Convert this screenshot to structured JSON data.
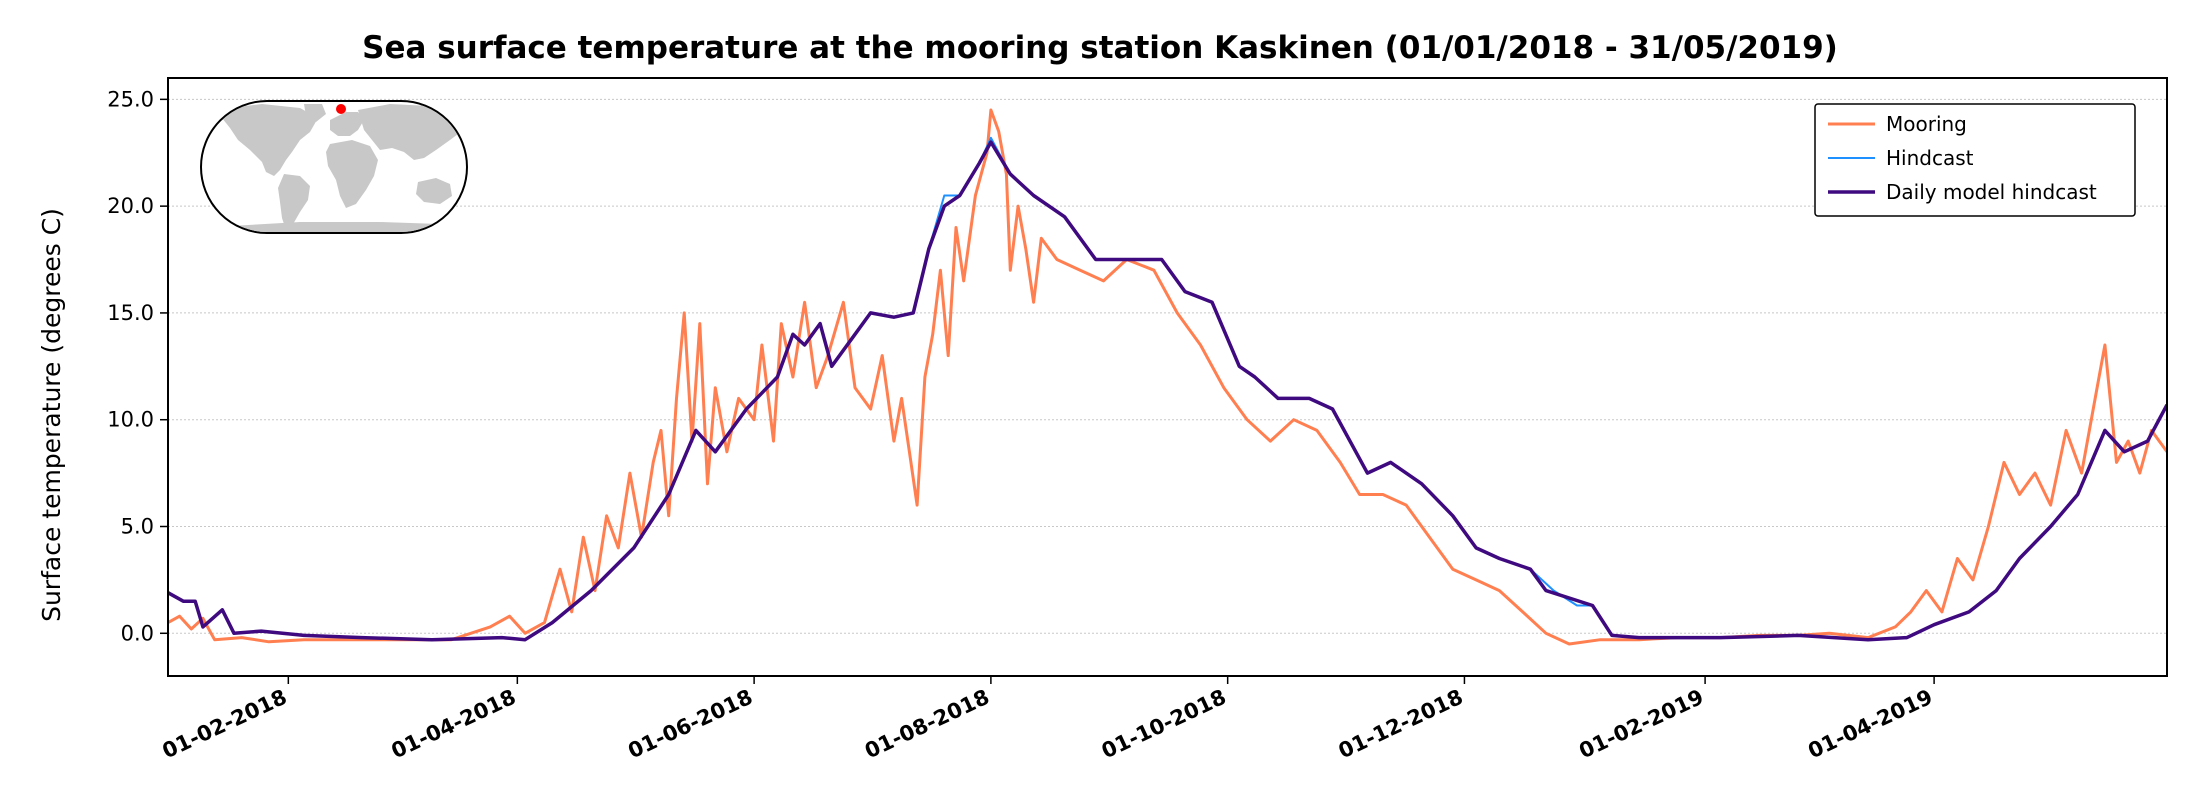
{
  "chart_data": {
    "type": "line",
    "title": "Sea surface temperature at the mooring station Kaskinen (01/01/2018 - 31/05/2019)",
    "xlabel": "",
    "ylabel": "Surface temperature (degrees C)",
    "xlim": [
      "2018-01-01",
      "2019-05-31"
    ],
    "ylim": [
      -2,
      26
    ],
    "yticks": [
      0,
      5,
      10,
      15,
      20,
      25
    ],
    "ytick_labels": [
      "0.0",
      "5.0",
      "10.0",
      "15.0",
      "20.0",
      "25.0"
    ],
    "xticks": [
      "2018-02-01",
      "2018-04-01",
      "2018-06-01",
      "2018-08-01",
      "2018-10-01",
      "2018-12-01",
      "2019-02-01",
      "2019-04-01"
    ],
    "xtick_labels": [
      "01-02-2018",
      "01-04-2018",
      "01-06-2018",
      "01-08-2018",
      "01-10-2018",
      "01-12-2018",
      "01-02-2019",
      "01-04-2019"
    ],
    "grid": "horizontal dotted",
    "legend_position": "top-right",
    "inset": "world map with station marker",
    "series": [
      {
        "name": "Mooring",
        "color": "#FF7F50",
        "points": [
          [
            "2018-01-01",
            0.5
          ],
          [
            "2018-01-04",
            0.8
          ],
          [
            "2018-01-07",
            0.2
          ],
          [
            "2018-01-10",
            0.7
          ],
          [
            "2018-01-13",
            -0.3
          ],
          [
            "2018-01-20",
            -0.2
          ],
          [
            "2018-01-27",
            -0.4
          ],
          [
            "2018-02-05",
            -0.3
          ],
          [
            "2018-02-15",
            -0.3
          ],
          [
            "2018-03-01",
            -0.3
          ],
          [
            "2018-03-15",
            -0.3
          ],
          [
            "2018-03-25",
            0.3
          ],
          [
            "2018-03-30",
            0.8
          ],
          [
            "2018-04-03",
            0.0
          ],
          [
            "2018-04-08",
            0.5
          ],
          [
            "2018-04-12",
            3.0
          ],
          [
            "2018-04-15",
            1.0
          ],
          [
            "2018-04-18",
            4.5
          ],
          [
            "2018-04-21",
            2.0
          ],
          [
            "2018-04-24",
            5.5
          ],
          [
            "2018-04-27",
            4.0
          ],
          [
            "2018-04-30",
            7.5
          ],
          [
            "2018-05-03",
            4.5
          ],
          [
            "2018-05-06",
            8.0
          ],
          [
            "2018-05-08",
            9.5
          ],
          [
            "2018-05-10",
            5.5
          ],
          [
            "2018-05-12",
            11.0
          ],
          [
            "2018-05-14",
            15.0
          ],
          [
            "2018-05-16",
            9.0
          ],
          [
            "2018-05-18",
            14.5
          ],
          [
            "2018-05-20",
            7.0
          ],
          [
            "2018-05-22",
            11.5
          ],
          [
            "2018-05-25",
            8.5
          ],
          [
            "2018-05-28",
            11.0
          ],
          [
            "2018-06-01",
            10.0
          ],
          [
            "2018-06-03",
            13.5
          ],
          [
            "2018-06-06",
            9.0
          ],
          [
            "2018-06-08",
            14.5
          ],
          [
            "2018-06-11",
            12.0
          ],
          [
            "2018-06-14",
            15.5
          ],
          [
            "2018-06-17",
            11.5
          ],
          [
            "2018-06-20",
            13.0
          ],
          [
            "2018-06-24",
            15.5
          ],
          [
            "2018-06-27",
            11.5
          ],
          [
            "2018-07-01",
            10.5
          ],
          [
            "2018-07-04",
            13.0
          ],
          [
            "2018-07-07",
            9.0
          ],
          [
            "2018-07-09",
            11.0
          ],
          [
            "2018-07-11",
            8.5
          ],
          [
            "2018-07-13",
            6.0
          ],
          [
            "2018-07-15",
            12.0
          ],
          [
            "2018-07-17",
            14.0
          ],
          [
            "2018-07-19",
            17.0
          ],
          [
            "2018-07-21",
            13.0
          ],
          [
            "2018-07-23",
            19.0
          ],
          [
            "2018-07-25",
            16.5
          ],
          [
            "2018-07-28",
            20.5
          ],
          [
            "2018-07-31",
            22.5
          ],
          [
            "2018-08-01",
            24.5
          ],
          [
            "2018-08-03",
            23.5
          ],
          [
            "2018-08-05",
            21.5
          ],
          [
            "2018-08-06",
            17.0
          ],
          [
            "2018-08-08",
            20.0
          ],
          [
            "2018-08-10",
            18.0
          ],
          [
            "2018-08-12",
            15.5
          ],
          [
            "2018-08-14",
            18.5
          ],
          [
            "2018-08-18",
            17.5
          ],
          [
            "2018-08-24",
            17.0
          ],
          [
            "2018-08-30",
            16.5
          ],
          [
            "2018-09-05",
            17.5
          ],
          [
            "2018-09-12",
            17.0
          ],
          [
            "2018-09-18",
            15.0
          ],
          [
            "2018-09-24",
            13.5
          ],
          [
            "2018-09-30",
            11.5
          ],
          [
            "2018-10-06",
            10.0
          ],
          [
            "2018-10-12",
            9.0
          ],
          [
            "2018-10-18",
            10.0
          ],
          [
            "2018-10-24",
            9.5
          ],
          [
            "2018-10-30",
            8.0
          ],
          [
            "2018-11-04",
            6.5
          ],
          [
            "2018-11-10",
            6.5
          ],
          [
            "2018-11-16",
            6.0
          ],
          [
            "2018-11-22",
            4.5
          ],
          [
            "2018-11-28",
            3.0
          ],
          [
            "2018-12-04",
            2.5
          ],
          [
            "2018-12-10",
            2.0
          ],
          [
            "2018-12-16",
            1.0
          ],
          [
            "2018-12-22",
            0.0
          ],
          [
            "2018-12-28",
            -0.5
          ],
          [
            "2019-01-05",
            -0.3
          ],
          [
            "2019-01-15",
            -0.3
          ],
          [
            "2019-01-25",
            -0.2
          ],
          [
            "2019-02-05",
            -0.2
          ],
          [
            "2019-02-15",
            -0.1
          ],
          [
            "2019-02-25",
            -0.1
          ],
          [
            "2019-03-05",
            0.0
          ],
          [
            "2019-03-15",
            -0.2
          ],
          [
            "2019-03-22",
            0.3
          ],
          [
            "2019-03-26",
            1.0
          ],
          [
            "2019-03-30",
            2.0
          ],
          [
            "2019-04-03",
            1.0
          ],
          [
            "2019-04-07",
            3.5
          ],
          [
            "2019-04-11",
            2.5
          ],
          [
            "2019-04-15",
            5.0
          ],
          [
            "2019-04-19",
            8.0
          ],
          [
            "2019-04-23",
            6.5
          ],
          [
            "2019-04-27",
            7.5
          ],
          [
            "2019-05-01",
            6.0
          ],
          [
            "2019-05-05",
            9.5
          ],
          [
            "2019-05-09",
            7.5
          ],
          [
            "2019-05-13",
            11.5
          ],
          [
            "2019-05-15",
            13.5
          ],
          [
            "2019-05-18",
            8.0
          ],
          [
            "2019-05-21",
            9.0
          ],
          [
            "2019-05-24",
            7.5
          ],
          [
            "2019-05-27",
            9.5
          ],
          [
            "2019-05-31",
            8.5
          ]
        ]
      },
      {
        "name": "Hindcast",
        "color": "#1E90FF",
        "points": [
          [
            "2018-01-01",
            1.9
          ],
          [
            "2018-01-05",
            1.5
          ],
          [
            "2018-01-08",
            1.5
          ],
          [
            "2018-01-10",
            0.3
          ],
          [
            "2018-01-15",
            1.1
          ],
          [
            "2018-01-18",
            0.0
          ],
          [
            "2018-01-25",
            0.1
          ],
          [
            "2018-02-05",
            -0.1
          ],
          [
            "2018-02-20",
            -0.2
          ],
          [
            "2018-03-10",
            -0.3
          ],
          [
            "2018-03-28",
            -0.2
          ],
          [
            "2018-04-03",
            -0.3
          ],
          [
            "2018-04-10",
            0.5
          ],
          [
            "2018-04-20",
            2.0
          ],
          [
            "2018-05-01",
            4.0
          ],
          [
            "2018-05-10",
            6.5
          ],
          [
            "2018-05-17",
            9.5
          ],
          [
            "2018-05-22",
            8.5
          ],
          [
            "2018-05-30",
            10.5
          ],
          [
            "2018-06-07",
            12.0
          ],
          [
            "2018-06-11",
            14.0
          ],
          [
            "2018-06-14",
            13.5
          ],
          [
            "2018-06-18",
            14.5
          ],
          [
            "2018-06-21",
            12.5
          ],
          [
            "2018-06-27",
            14.0
          ],
          [
            "2018-07-01",
            15.0
          ],
          [
            "2018-07-07",
            14.8
          ],
          [
            "2018-07-12",
            15.0
          ],
          [
            "2018-07-16",
            18.0
          ],
          [
            "2018-07-20",
            20.5
          ],
          [
            "2018-07-24",
            20.5
          ],
          [
            "2018-07-29",
            22.0
          ],
          [
            "2018-08-01",
            23.2
          ],
          [
            "2018-08-06",
            21.5
          ],
          [
            "2018-08-12",
            20.5
          ],
          [
            "2018-08-20",
            19.5
          ],
          [
            "2018-08-28",
            17.5
          ],
          [
            "2018-09-05",
            17.5
          ],
          [
            "2018-09-14",
            17.5
          ],
          [
            "2018-09-20",
            16.0
          ],
          [
            "2018-09-27",
            15.5
          ],
          [
            "2018-10-04",
            12.5
          ],
          [
            "2018-10-08",
            12.0
          ],
          [
            "2018-10-14",
            11.0
          ],
          [
            "2018-10-22",
            11.0
          ],
          [
            "2018-10-28",
            10.5
          ],
          [
            "2018-11-06",
            7.5
          ],
          [
            "2018-11-12",
            8.0
          ],
          [
            "2018-11-20",
            7.0
          ],
          [
            "2018-11-28",
            5.5
          ],
          [
            "2018-12-04",
            4.0
          ],
          [
            "2018-12-10",
            3.5
          ],
          [
            "2018-12-18",
            3.0
          ],
          [
            "2018-12-24",
            2.0
          ],
          [
            "2018-12-30",
            1.3
          ],
          [
            "2019-01-03",
            1.3
          ],
          [
            "2019-01-08",
            -0.1
          ],
          [
            "2019-01-15",
            -0.2
          ],
          [
            "2019-02-05",
            -0.2
          ],
          [
            "2019-02-25",
            -0.1
          ],
          [
            "2019-03-15",
            -0.3
          ],
          [
            "2019-03-25",
            -0.2
          ],
          [
            "2019-04-01",
            0.4
          ],
          [
            "2019-04-10",
            1.0
          ],
          [
            "2019-04-17",
            2.0
          ],
          [
            "2019-04-23",
            3.5
          ],
          [
            "2019-05-01",
            5.0
          ],
          [
            "2019-05-08",
            6.5
          ],
          [
            "2019-05-15",
            9.5
          ],
          [
            "2019-05-20",
            8.5
          ],
          [
            "2019-05-26",
            9.0
          ],
          [
            "2019-05-31",
            10.7
          ]
        ]
      },
      {
        "name": "Daily model hindcast",
        "color": "#3F0A7F",
        "points": [
          [
            "2018-01-01",
            1.9
          ],
          [
            "2018-01-05",
            1.5
          ],
          [
            "2018-01-08",
            1.5
          ],
          [
            "2018-01-10",
            0.3
          ],
          [
            "2018-01-15",
            1.1
          ],
          [
            "2018-01-18",
            0.0
          ],
          [
            "2018-01-25",
            0.1
          ],
          [
            "2018-02-05",
            -0.1
          ],
          [
            "2018-02-20",
            -0.2
          ],
          [
            "2018-03-10",
            -0.3
          ],
          [
            "2018-03-28",
            -0.2
          ],
          [
            "2018-04-03",
            -0.3
          ],
          [
            "2018-04-10",
            0.5
          ],
          [
            "2018-04-20",
            2.0
          ],
          [
            "2018-05-01",
            4.0
          ],
          [
            "2018-05-10",
            6.5
          ],
          [
            "2018-05-17",
            9.5
          ],
          [
            "2018-05-22",
            8.5
          ],
          [
            "2018-05-30",
            10.5
          ],
          [
            "2018-06-07",
            12.0
          ],
          [
            "2018-06-11",
            14.0
          ],
          [
            "2018-06-14",
            13.5
          ],
          [
            "2018-06-18",
            14.5
          ],
          [
            "2018-06-21",
            12.5
          ],
          [
            "2018-06-27",
            14.0
          ],
          [
            "2018-07-01",
            15.0
          ],
          [
            "2018-07-07",
            14.8
          ],
          [
            "2018-07-12",
            15.0
          ],
          [
            "2018-07-16",
            18.0
          ],
          [
            "2018-07-20",
            20.0
          ],
          [
            "2018-07-24",
            20.5
          ],
          [
            "2018-07-29",
            22.0
          ],
          [
            "2018-08-01",
            23.0
          ],
          [
            "2018-08-06",
            21.5
          ],
          [
            "2018-08-12",
            20.5
          ],
          [
            "2018-08-20",
            19.5
          ],
          [
            "2018-08-28",
            17.5
          ],
          [
            "2018-09-05",
            17.5
          ],
          [
            "2018-09-14",
            17.5
          ],
          [
            "2018-09-20",
            16.0
          ],
          [
            "2018-09-27",
            15.5
          ],
          [
            "2018-10-04",
            12.5
          ],
          [
            "2018-10-08",
            12.0
          ],
          [
            "2018-10-14",
            11.0
          ],
          [
            "2018-10-22",
            11.0
          ],
          [
            "2018-10-28",
            10.5
          ],
          [
            "2018-11-06",
            7.5
          ],
          [
            "2018-11-12",
            8.0
          ],
          [
            "2018-11-20",
            7.0
          ],
          [
            "2018-11-28",
            5.5
          ],
          [
            "2018-12-04",
            4.0
          ],
          [
            "2018-12-10",
            3.5
          ],
          [
            "2018-12-18",
            3.0
          ],
          [
            "2018-12-22",
            2.0
          ],
          [
            "2019-01-03",
            1.3
          ],
          [
            "2019-01-08",
            -0.1
          ],
          [
            "2019-01-15",
            -0.2
          ],
          [
            "2019-02-05",
            -0.2
          ],
          [
            "2019-02-25",
            -0.1
          ],
          [
            "2019-03-15",
            -0.3
          ],
          [
            "2019-03-25",
            -0.2
          ],
          [
            "2019-04-01",
            0.4
          ],
          [
            "2019-04-10",
            1.0
          ],
          [
            "2019-04-17",
            2.0
          ],
          [
            "2019-04-23",
            3.5
          ],
          [
            "2019-05-01",
            5.0
          ],
          [
            "2019-05-08",
            6.5
          ],
          [
            "2019-05-15",
            9.5
          ],
          [
            "2019-05-20",
            8.5
          ],
          [
            "2019-05-26",
            9.0
          ],
          [
            "2019-05-31",
            10.7
          ]
        ]
      }
    ]
  }
}
